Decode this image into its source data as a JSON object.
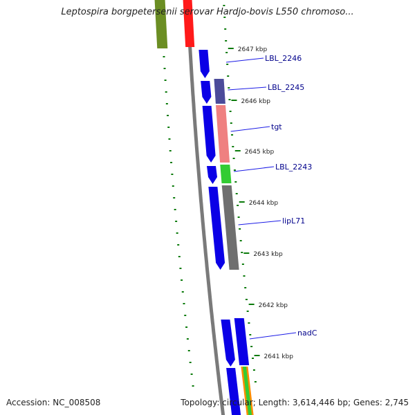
{
  "title": "Leptospira borgpetersenii serovar Hardjo-bovis L550 chromoso...",
  "footer": {
    "accession_label": "Accession:",
    "accession_value": "NC_008508",
    "topology_label": "Topology:",
    "topology_value": "circular",
    "length_label": "Length:",
    "length_value": "3,614,446 bp",
    "genes_label": "Genes:",
    "genes_value": "2,745"
  },
  "ticks": [
    {
      "label": "2647 kbp"
    },
    {
      "label": "2646 kbp"
    },
    {
      "label": "2645 kbp"
    },
    {
      "label": "2644 kbp"
    },
    {
      "label": "2643 kbp"
    },
    {
      "label": "2642 kbp"
    },
    {
      "label": "2641 kbp"
    }
  ],
  "gene_labels": [
    {
      "name": "LBL_2246"
    },
    {
      "name": "LBL_2245"
    },
    {
      "name": "tgt"
    },
    {
      "name": "LBL_2243"
    },
    {
      "name": "lipL71"
    },
    {
      "name": "nadC"
    }
  ],
  "colors": {
    "cds": "#0b00e6",
    "cds_dark": "#07009a",
    "backbone": "#7a7a7a",
    "tick": "#0a7a0a",
    "label": "#00008b",
    "leader": "#1a1ae6",
    "olive": "#6b8e23",
    "red": "#ff1a1a",
    "slate": "#4b4b9a",
    "pink": "#ef8080",
    "green": "#33cc33",
    "gray_feature": "#6f6f6f",
    "orange": "#ff8c00"
  },
  "icons": [
    "map-svg"
  ]
}
